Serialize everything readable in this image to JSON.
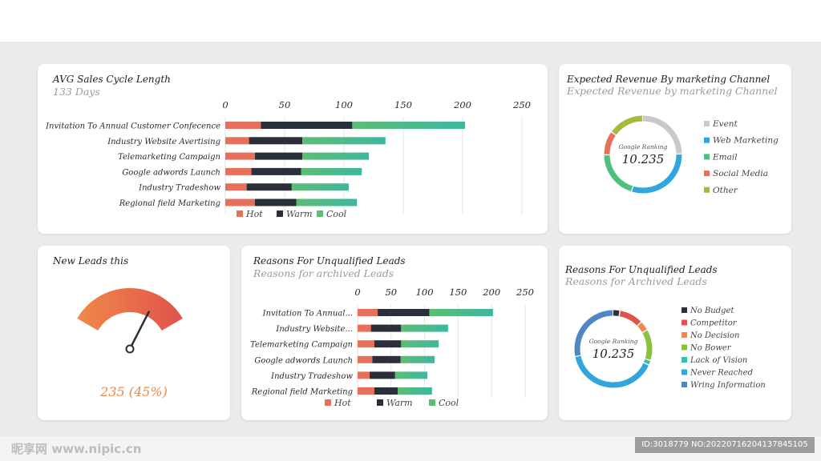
{
  "chart_data": [
    {
      "id": "avg_sales",
      "type": "bar",
      "stacked": true,
      "orientation": "horizontal",
      "title": "AVG Sales Cycle Length",
      "subtitle": "133 Days",
      "categories": [
        "Invitation To Annual Customer Confecence",
        "Industry Website Avertising",
        "Telemarketing Campaign",
        "Google adwords Launch",
        "Industry Tradeshow",
        "Regional field Marketing"
      ],
      "series": [
        {
          "name": "Hot",
          "values": [
            30,
            20,
            25,
            22,
            18,
            25
          ]
        },
        {
          "name": "Warm",
          "values": [
            77,
            45,
            40,
            42,
            38,
            35
          ]
        },
        {
          "name": "Cool",
          "values": [
            95,
            70,
            56,
            51,
            48,
            51
          ]
        }
      ],
      "xticks": [
        "0",
        "50",
        "100",
        "150",
        "200",
        "250"
      ],
      "xlim": [
        0,
        250
      ],
      "legend": "bottom"
    },
    {
      "id": "unqualified",
      "type": "bar",
      "stacked": true,
      "orientation": "horizontal",
      "title": "Reasons For Unqualified Leads",
      "subtitle": "Reasons for archived Leads",
      "categories": [
        "Invitation To Annual...",
        "Industry Website...",
        "Telemarketing Campaign",
        "Google adwords Launch",
        "Industry Tradeshow",
        "Regional field Marketing"
      ],
      "series": [
        {
          "name": "Hot",
          "values": [
            30,
            20,
            25,
            22,
            18,
            25
          ]
        },
        {
          "name": "Warm",
          "values": [
            77,
            45,
            40,
            42,
            38,
            35
          ]
        },
        {
          "name": "Cool",
          "values": [
            95,
            70,
            56,
            51,
            48,
            51
          ]
        }
      ],
      "xticks": [
        "0",
        "50",
        "100",
        "150",
        "200",
        "250"
      ],
      "xlim": [
        0,
        250
      ],
      "legend": "bottom"
    },
    {
      "id": "revenue_donut",
      "type": "pie",
      "donut": true,
      "title": "Expected Revenue By marketing Channel",
      "subtitle": "Expected Revenue by marketing Channel",
      "center_label": "Google Ranking",
      "center_value": "10.235",
      "labels": [
        "Event",
        "Web Marketing",
        "Email",
        "Social Media",
        "Other"
      ],
      "values": [
        25,
        30,
        20,
        10,
        15
      ],
      "legend": "right"
    },
    {
      "id": "reasons_donut",
      "type": "pie",
      "donut": true,
      "title": "Reasons For Unqualified Leads",
      "subtitle": "Reasons for Archived Leads",
      "center_label": "Google Ranking",
      "center_value": "10.235",
      "labels": [
        "No Budget",
        "Competitor",
        "No Decision",
        "No Bower",
        "Lack of Vision",
        "Never Reached",
        "Wring Information"
      ],
      "values": [
        3,
        10,
        4,
        13,
        2,
        40,
        28
      ],
      "legend": "right"
    }
  ],
  "gauge": {
    "title": "New Leads this",
    "value_text": "235 (45%)",
    "fraction": 0.45
  },
  "colors": {
    "Hot": "#e8705a",
    "Warm": "#2a2f3a",
    "Cool": "#5cbd74",
    "Cool2": "#3cb8a0",
    "Event": "#c9c9c9",
    "Web Marketing": "#30a6dc",
    "Email": "#4fbf7e",
    "Social Media": "#e8705a",
    "Other": "#a9b83e",
    "No Budget": "#2a2f3a",
    "Competitor": "#e0524c",
    "No Decision": "#f0894a",
    "No Bower": "#8cc03f",
    "Lack of Vision": "#35bfb2",
    "Never Reached": "#30a6dc",
    "Wring Information": "#4f86c6",
    "gauge_start": "#f0894a",
    "gauge_end": "#e0524c",
    "grid": "#e6e6e6",
    "text": "#2a2a2a"
  },
  "watermark": {
    "left": "昵享网 www.nipic.cn",
    "id": "ID:3018779 NO:20220716204137845105"
  }
}
